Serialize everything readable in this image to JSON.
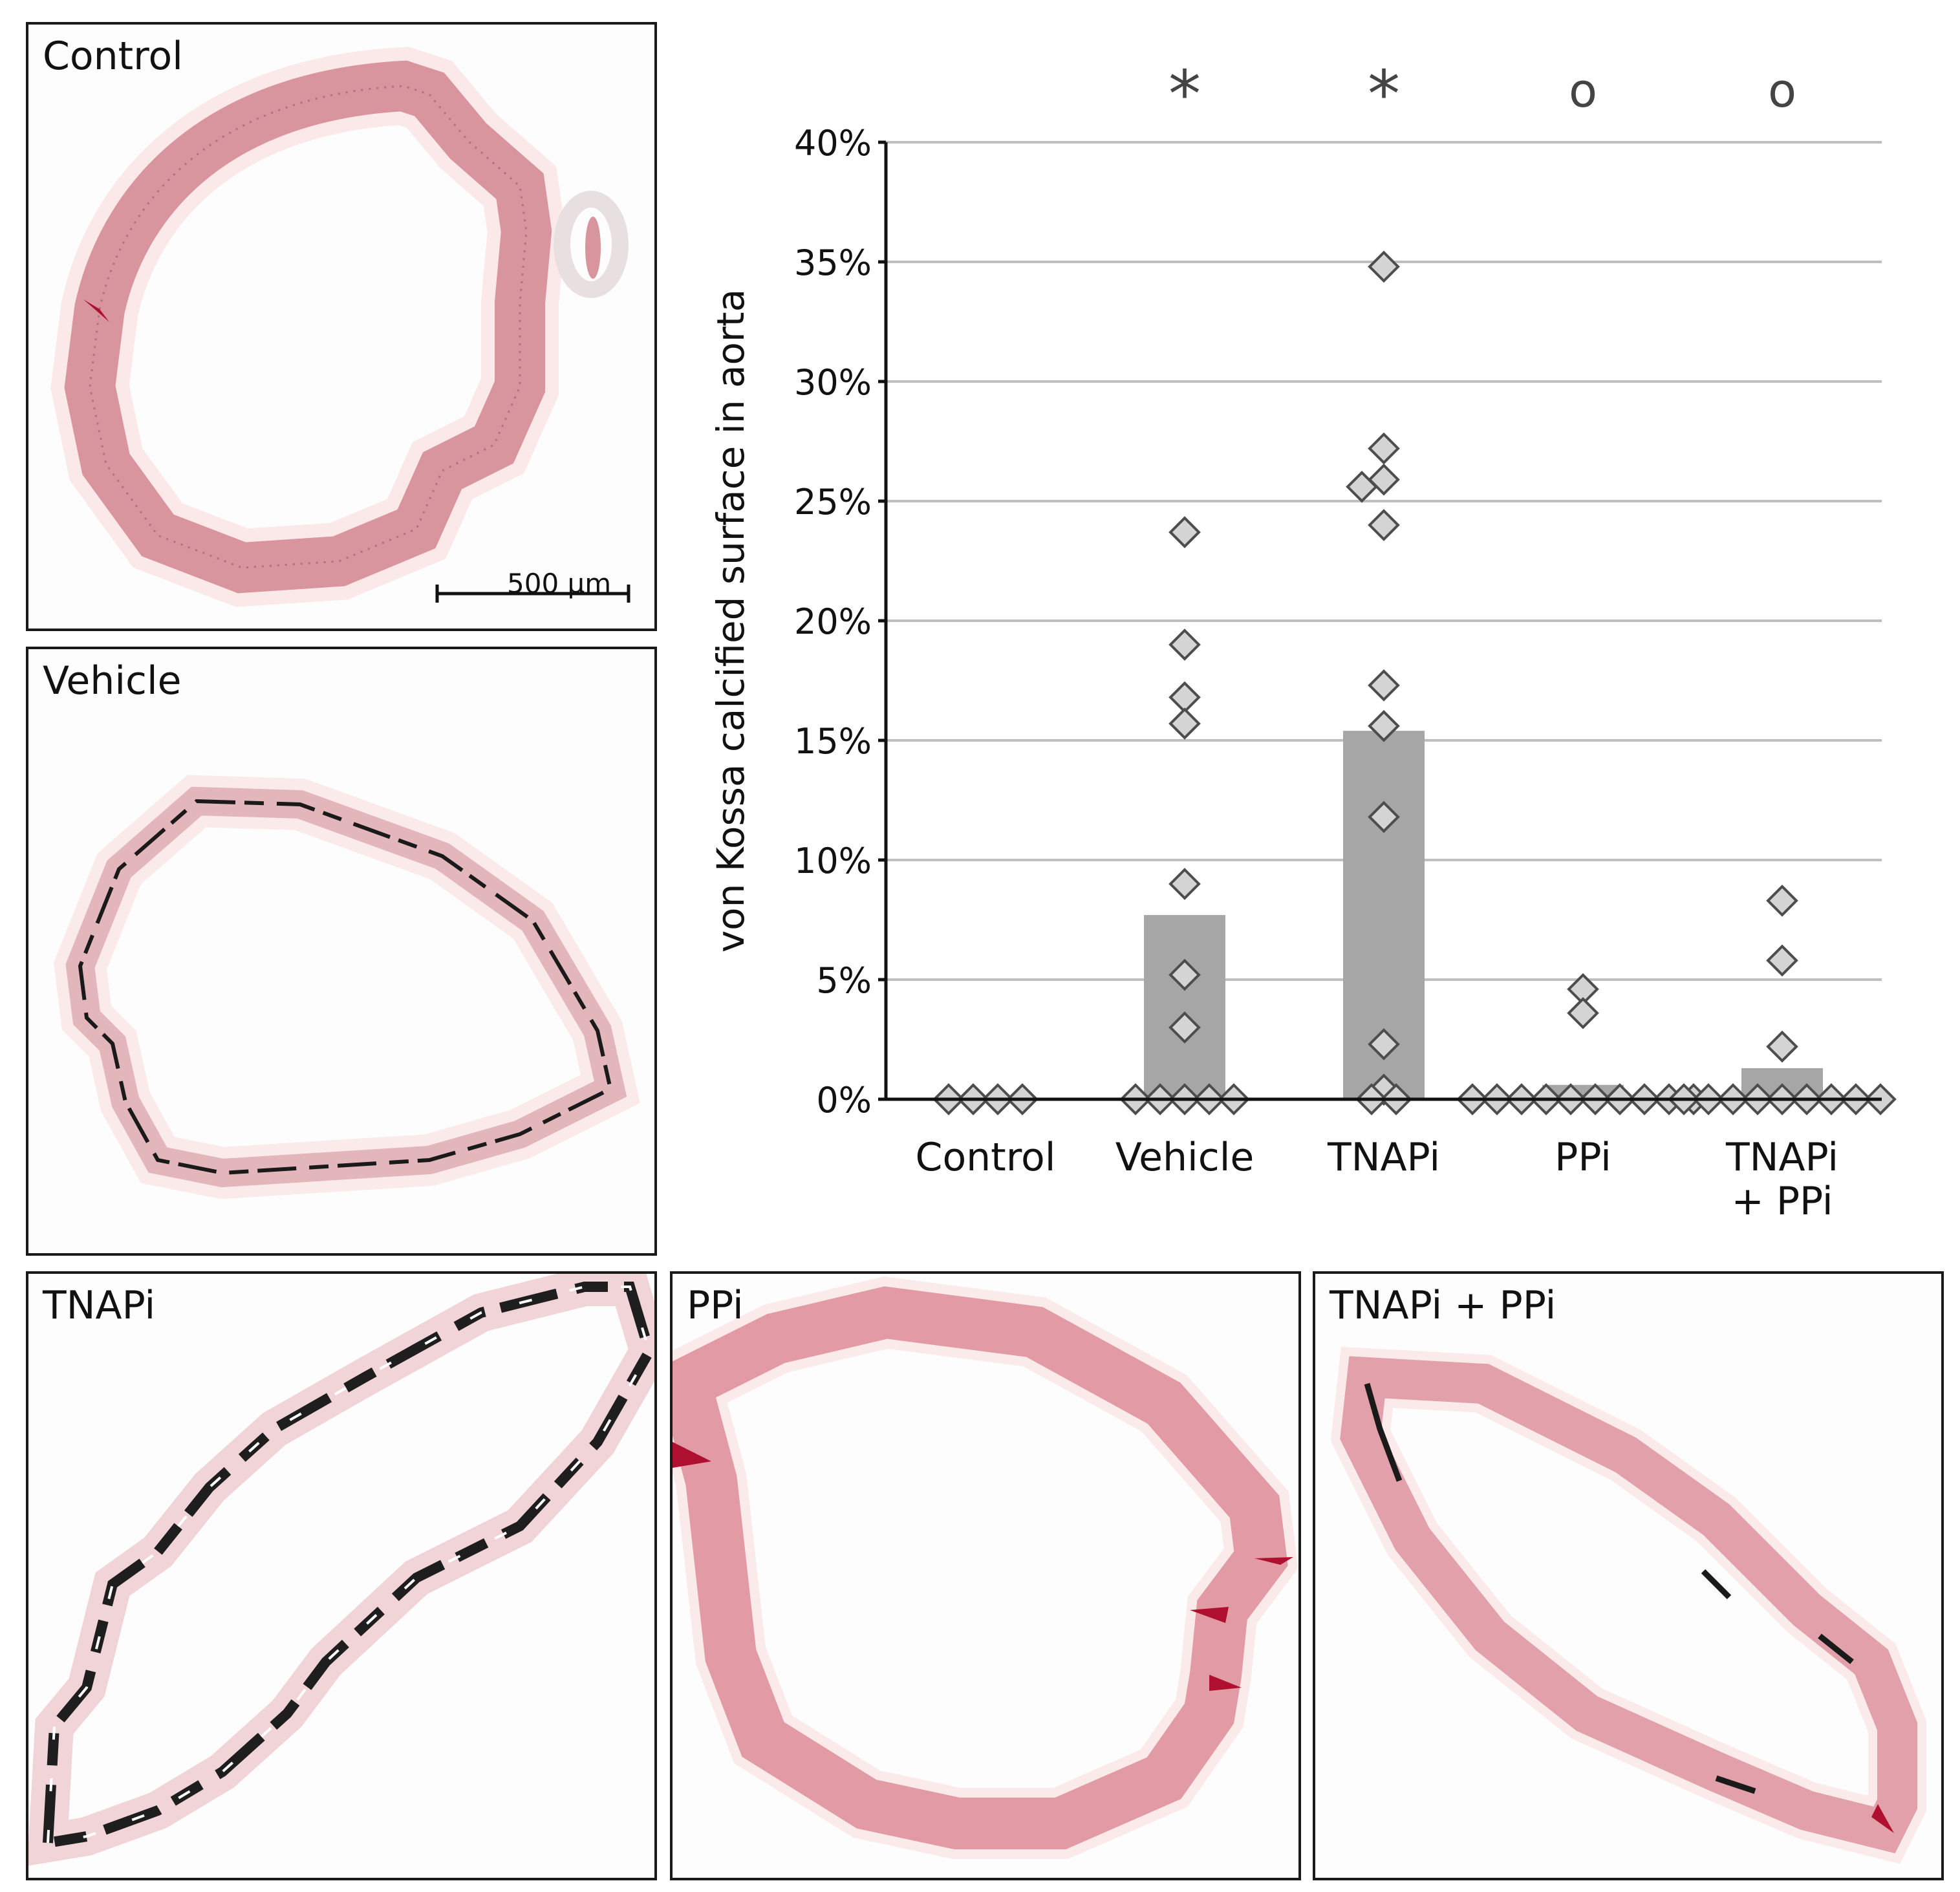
{
  "panels": {
    "control": "Control",
    "vehicle": "Vehicle",
    "tnapi": "TNAPi",
    "ppi": "PPi",
    "combo": "TNAPi + PPi"
  },
  "scale_bar_label": "500 µm",
  "chart_data": {
    "type": "scatter",
    "title": "",
    "xlabel": "",
    "ylabel": "von Kossa calcified surface in aorta",
    "ylim": [
      0,
      40
    ],
    "y_ticks": [
      "0%",
      "5%",
      "10%",
      "15%",
      "20%",
      "25%",
      "30%",
      "35%",
      "40%"
    ],
    "y_tick_values": [
      0,
      5,
      10,
      15,
      20,
      25,
      30,
      35,
      40
    ],
    "grid": true,
    "categories": [
      "Control",
      "Vehicle",
      "TNAPi",
      "PPi",
      "TNAPi\n+ PPi"
    ],
    "category_lines": [
      [
        "Control"
      ],
      [
        "Vehicle"
      ],
      [
        "TNAPi"
      ],
      [
        "PPi"
      ],
      [
        "TNAPi",
        "+ PPi"
      ]
    ],
    "means": [
      0,
      7.7,
      15.4,
      0.6,
      1.3
    ],
    "significance": [
      "",
      "*",
      "*",
      "o",
      "o"
    ],
    "points": [
      [
        0,
        0,
        0,
        0
      ],
      [
        23.7,
        19.0,
        16.8,
        15.7,
        9.0,
        5.2,
        3.0,
        0,
        0,
        0,
        0,
        0
      ],
      [
        34.8,
        27.2,
        25.9,
        25.6,
        24.0,
        17.3,
        15.6,
        11.8,
        2.3,
        0.4,
        0,
        0
      ],
      [
        4.6,
        3.6,
        0,
        0,
        0,
        0,
        0,
        0,
        0,
        0,
        0,
        0
      ],
      [
        8.3,
        5.8,
        2.2,
        0,
        0,
        0,
        0,
        0,
        0,
        0,
        0,
        0
      ]
    ],
    "bar_color": "#a6a6a6",
    "marker_fill": "#d4d4d4",
    "marker_stroke": "#4d4d4d",
    "grid_color": "#bfbfbf"
  }
}
